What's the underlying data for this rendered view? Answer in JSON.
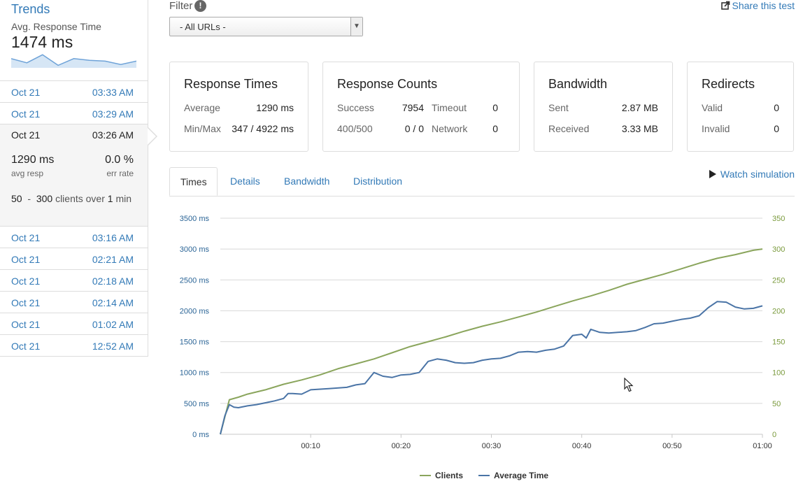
{
  "sidebar": {
    "title": "Trends",
    "metric_label": "Avg. Response Time",
    "metric_value": "1474 ms",
    "sparkline": [
      0.55,
      0.3,
      0.78,
      0.15,
      0.55,
      0.45,
      0.4,
      0.2,
      0.4
    ],
    "runs": [
      {
        "date": "Oct 21",
        "time": "03:33 AM"
      },
      {
        "date": "Oct 21",
        "time": "03:29 AM"
      },
      {
        "date": "Oct 21",
        "time": "03:26 AM"
      },
      {
        "date": "Oct 21",
        "time": "03:16 AM"
      },
      {
        "date": "Oct 21",
        "time": "02:21 AM"
      },
      {
        "date": "Oct 21",
        "time": "02:18 AM"
      },
      {
        "date": "Oct 21",
        "time": "02:14 AM"
      },
      {
        "date": "Oct 21",
        "time": "01:02 AM"
      },
      {
        "date": "Oct 21",
        "time": "12:52 AM"
      }
    ],
    "selected": {
      "avg_resp": "1290 ms",
      "avg_resp_label": "avg resp",
      "err_rate": "0.0 %",
      "err_rate_label": "err rate",
      "clients_from": "50",
      "dash": "-",
      "clients_to": "300",
      "clients_over": "clients over",
      "duration": "1",
      "duration_unit": "min"
    }
  },
  "filter": {
    "label": "Filter",
    "help": "!",
    "value": "- All URLs -"
  },
  "share_label": "Share this test",
  "cards": {
    "response_times": {
      "title": "Response Times",
      "average_label": "Average",
      "average": "1290 ms",
      "minmax_label": "Min/Max",
      "minmax": "347 / 4922 ms"
    },
    "response_counts": {
      "title": "Response Counts",
      "success_label": "Success",
      "success": "7954",
      "timeout_label": "Timeout",
      "timeout": "0",
      "err_label": "400/500",
      "err": "0 / 0",
      "network_label": "Network",
      "network": "0"
    },
    "bandwidth": {
      "title": "Bandwidth",
      "sent_label": "Sent",
      "sent": "2.87 MB",
      "received_label": "Received",
      "received": "3.33 MB"
    },
    "redirects": {
      "title": "Redirects",
      "valid_label": "Valid",
      "valid": "0",
      "invalid_label": "Invalid",
      "invalid": "0"
    }
  },
  "tabs": [
    "Times",
    "Details",
    "Bandwidth",
    "Distribution"
  ],
  "watch_label": "Watch simulation",
  "chart_data": {
    "type": "line",
    "x_ticks": [
      "00:10",
      "00:20",
      "00:30",
      "00:40",
      "00:50",
      "01:00"
    ],
    "y_left_ticks": [
      "3500 ms",
      "3000 ms",
      "2500 ms",
      "2000 ms",
      "1500 ms",
      "1000 ms",
      "500 ms",
      "0 ms"
    ],
    "y_right_ticks": [
      "350",
      "300",
      "250",
      "200",
      "150",
      "100",
      "50",
      "0"
    ],
    "y_left_range": [
      0,
      3500
    ],
    "y_right_range": [
      0,
      350
    ],
    "x_range_seconds": [
      0,
      60
    ],
    "grid": true,
    "legend_position": "bottom",
    "colors": {
      "clients": "#8aa55c",
      "average": "#4a74a6",
      "axis_left": "#2a6496",
      "axis_right": "#7a9a3c"
    },
    "series": [
      {
        "name": "Clients",
        "axis": "right",
        "x": [
          0,
          1,
          2,
          3,
          5,
          7,
          9,
          11,
          13,
          15,
          17,
          19,
          21,
          23,
          25,
          27,
          29,
          31,
          33,
          35,
          37,
          39,
          41,
          43,
          45,
          47,
          49,
          51,
          53,
          55,
          57,
          59,
          60
        ],
        "y": [
          0,
          56,
          60,
          65,
          72,
          81,
          88,
          96,
          106,
          114,
          122,
          132,
          142,
          150,
          158,
          167,
          175,
          182,
          190,
          198,
          207,
          216,
          224,
          233,
          243,
          251,
          259,
          268,
          277,
          285,
          291,
          298,
          300
        ]
      },
      {
        "name": "Average Time",
        "axis": "left",
        "x": [
          0,
          0.5,
          1,
          1.5,
          2,
          3,
          4,
          5,
          6,
          7,
          7.5,
          8,
          9,
          10,
          12,
          14,
          15,
          16,
          17,
          18,
          19,
          20,
          21,
          22,
          23,
          24,
          25,
          26,
          27,
          28,
          29,
          30,
          31,
          32,
          33,
          34,
          35,
          36,
          37,
          38,
          39,
          40,
          40.5,
          41,
          42,
          43,
          44,
          45,
          46,
          47,
          48,
          49,
          50,
          51,
          52,
          53,
          54,
          55,
          56,
          57,
          58,
          59,
          60
        ],
        "y": [
          0,
          300,
          480,
          440,
          430,
          460,
          480,
          510,
          540,
          580,
          660,
          660,
          650,
          720,
          740,
          760,
          800,
          820,
          1000,
          940,
          920,
          960,
          970,
          1000,
          1180,
          1220,
          1200,
          1160,
          1150,
          1160,
          1200,
          1220,
          1230,
          1270,
          1330,
          1340,
          1330,
          1360,
          1380,
          1430,
          1600,
          1620,
          1560,
          1700,
          1650,
          1640,
          1650,
          1660,
          1680,
          1730,
          1790,
          1800,
          1830,
          1860,
          1880,
          1920,
          2050,
          2150,
          2140,
          2060,
          2030,
          2040,
          2080
        ]
      }
    ]
  }
}
